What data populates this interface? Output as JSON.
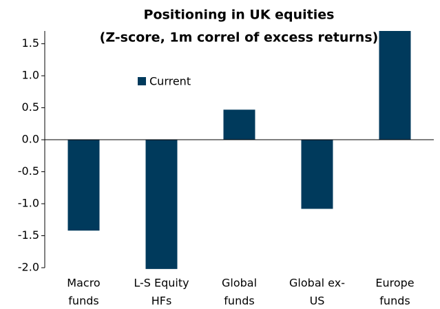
{
  "chart_data": {
    "type": "bar",
    "title": "Positioning in UK equities",
    "subtitle": "(Z-score, 1m correl of excess returns)",
    "categories": [
      [
        "Macro",
        "funds"
      ],
      [
        "L-S Equity",
        "HFs"
      ],
      [
        "Global",
        "funds"
      ],
      [
        "Global ex-",
        "US"
      ],
      [
        "Europe",
        "funds"
      ]
    ],
    "series": [
      {
        "name": "Current",
        "color": "#003a5c",
        "values": [
          -1.42,
          -2.02,
          0.47,
          -1.08,
          1.7
        ]
      }
    ],
    "ylim": [
      -2.0,
      1.7
    ],
    "yticks": [
      {
        "value": -2.0,
        "label": "-2.0"
      },
      -1.5,
      {
        "value": -1.0,
        "label": "-1.0"
      },
      -0.5,
      {
        "value": 0.0,
        "label": "0.0"
      },
      0.5,
      {
        "value": 1.0,
        "label": "1.0"
      },
      1.5
    ],
    "grid": false
  }
}
